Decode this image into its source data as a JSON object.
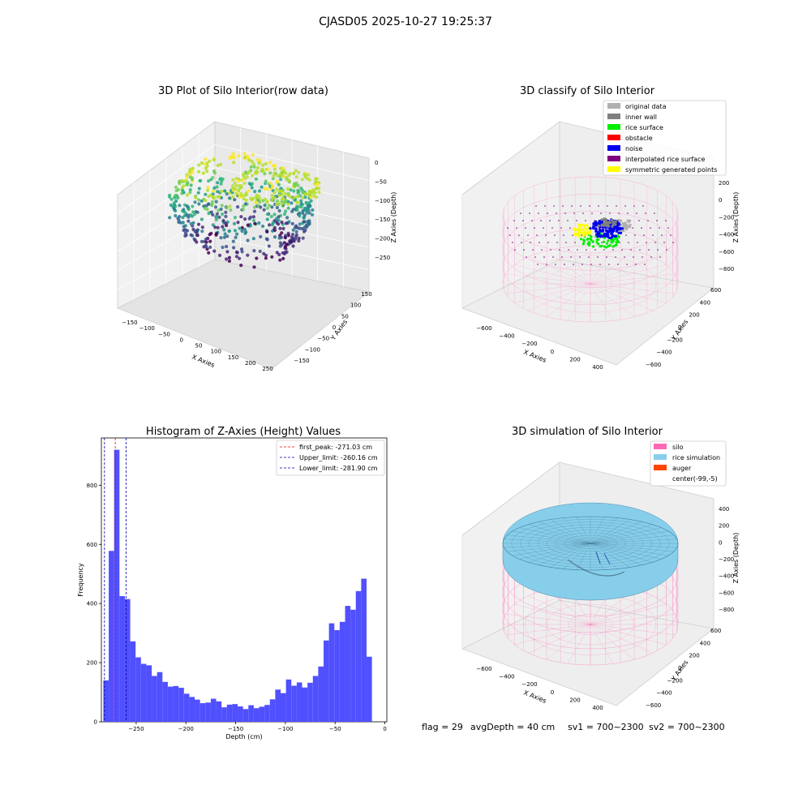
{
  "figure": {
    "suptitle": "CJASD05 2025-10-27 19:25:37",
    "footer": {
      "flag": "flag = 29",
      "avg_depth": "avgDepth = 40 cm",
      "sv1": "sv1 = 700~2300",
      "sv2": "sv2 = 700~2300"
    }
  },
  "chart_data": [
    {
      "type": "scatter",
      "title": "3D Plot of Silo Interior(row data)",
      "xlabel": "X Axies",
      "ylabel": "Y Axies",
      "zlabel": "Z Axies (Depth)",
      "x_ticks": [
        "−150",
        "−100",
        "−50",
        "0",
        "50",
        "100",
        "150",
        "200",
        "250"
      ],
      "y_ticks": [
        "−150",
        "−100",
        "−50",
        "0",
        "50",
        "100",
        "150"
      ],
      "z_ticks": [
        "0",
        "−50",
        "−100",
        "−150",
        "−200",
        "−250"
      ],
      "colormap": "viridis"
    },
    {
      "type": "scatter",
      "title": "3D classify of Silo Interior",
      "xlabel": "X Axies",
      "ylabel": "Y Axies",
      "zlabel": "Z Axies (Depth)",
      "x_ticks": [
        "−600",
        "−400",
        "−200",
        "0",
        "200",
        "400"
      ],
      "y_ticks": [
        "600",
        "400",
        "200",
        "0",
        "−200",
        "−400",
        "−600"
      ],
      "z_ticks": [
        "200",
        "0",
        "−200",
        "−400",
        "−600",
        "−800"
      ],
      "legend_position": "top-right",
      "legend": [
        {
          "name": "original data",
          "color": "#b0b0b0"
        },
        {
          "name": "inner wall",
          "color": "#808080"
        },
        {
          "name": "rice surface",
          "color": "#00ee00"
        },
        {
          "name": "obstacle",
          "color": "#ff0000"
        },
        {
          "name": "noise",
          "color": "#0000ee"
        },
        {
          "name": "interpolated rice surface",
          "color": "#800080"
        },
        {
          "name": "symmetric generated points",
          "color": "#ffff00"
        }
      ]
    },
    {
      "type": "bar",
      "title": "Histogram of Z-Axies (Height) Values",
      "xlabel": "Depth (cm)",
      "ylabel": "Frequency",
      "bar_color": "#5050ff",
      "xlim": [
        -285,
        2
      ],
      "ylim": [
        0,
        960
      ],
      "x_ticks": [
        -250,
        -200,
        -150,
        -100,
        -50,
        0
      ],
      "y_ticks": [
        0,
        200,
        400,
        600,
        800
      ],
      "bin_start": -283,
      "bin_width": 5.4,
      "values": [
        140,
        578,
        920,
        425,
        415,
        272,
        218,
        196,
        191,
        155,
        168,
        135,
        119,
        121,
        115,
        95,
        84,
        75,
        63,
        65,
        78,
        69,
        49,
        58,
        60,
        52,
        43,
        56,
        46,
        51,
        57,
        76,
        109,
        97,
        143,
        122,
        133,
        116,
        132,
        155,
        187,
        275,
        333,
        310,
        338,
        392,
        379,
        442,
        484,
        220
      ],
      "lines": [
        {
          "label": "first_peak: -271.03 cm",
          "x": -271.03,
          "color": "#ff0000"
        },
        {
          "label": "Upper_limit: -260.16 cm",
          "x": -260.16,
          "color": "#0000aa"
        },
        {
          "label": "Lower_limit: -281.90 cm",
          "x": -281.9,
          "color": "#0000aa"
        }
      ],
      "legend_position": "top-right"
    },
    {
      "type": "area",
      "title": "3D simulation of Silo Interior",
      "xlabel": "X Axies",
      "ylabel": "Y Axies",
      "zlabel": "Z Axies (Depth)",
      "x_ticks": [
        "−600",
        "−400",
        "−200",
        "0",
        "200",
        "400"
      ],
      "y_ticks": [
        "600",
        "400",
        "200",
        "0",
        "−200",
        "−400",
        "−600"
      ],
      "z_ticks": [
        "400",
        "200",
        "0",
        "−200",
        "−400",
        "−600",
        "−800"
      ],
      "legend_position": "top-right",
      "legend": [
        {
          "name": "silo",
          "color": "#ff69b4"
        },
        {
          "name": "rice simulation",
          "color": "#87ceeb"
        },
        {
          "name": "auger",
          "color": "#ff4500"
        },
        {
          "name": "center(-99,-5)",
          "color": ""
        }
      ]
    }
  ]
}
